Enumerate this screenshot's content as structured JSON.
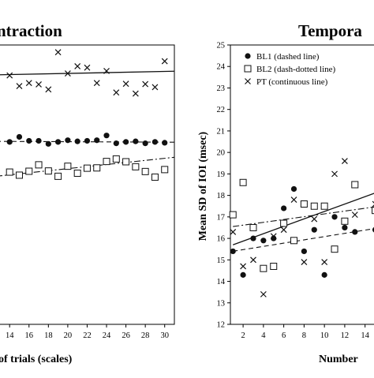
{
  "chart_data": [
    {
      "type": "scatter",
      "title": "ntraction",
      "xlabel": "of trials (scales)",
      "ylabel": "",
      "xlim": [
        12.6,
        31
      ],
      "ylim": [
        0,
        100
      ],
      "x_ticks": [
        "14",
        "16",
        "18",
        "20",
        "22",
        "24",
        "26",
        "28",
        "30"
      ],
      "series": [
        {
          "name": "PT",
          "marker": "x",
          "points": [
            {
              "x": 14,
              "y": 89.1
            },
            {
              "x": 15,
              "y": 85.3
            },
            {
              "x": 16,
              "y": 86.4
            },
            {
              "x": 17,
              "y": 85.9
            },
            {
              "x": 18,
              "y": 84.1
            },
            {
              "x": 19,
              "y": 97.4
            },
            {
              "x": 20,
              "y": 89.8
            },
            {
              "x": 21,
              "y": 92.4
            },
            {
              "x": 22,
              "y": 91.9
            },
            {
              "x": 23,
              "y": 86.4
            },
            {
              "x": 24,
              "y": 90.7
            },
            {
              "x": 25,
              "y": 83.0
            },
            {
              "x": 26,
              "y": 86.1
            },
            {
              "x": 27,
              "y": 82.6
            },
            {
              "x": 28,
              "y": 86.0
            },
            {
              "x": 29,
              "y": 84.9
            },
            {
              "x": 30,
              "y": 94.2
            }
          ],
          "fit": {
            "style": "solid",
            "x": [
              12.6,
              31
            ],
            "y": [
              89.3,
              90.6
            ]
          }
        },
        {
          "name": "BL1",
          "marker": "filled-circle",
          "points": [
            {
              "x": 14,
              "y": 65.3
            },
            {
              "x": 15,
              "y": 67.1
            },
            {
              "x": 16,
              "y": 65.7
            },
            {
              "x": 17,
              "y": 65.7
            },
            {
              "x": 18,
              "y": 64.6
            },
            {
              "x": 19,
              "y": 65.3
            },
            {
              "x": 20,
              "y": 65.9
            },
            {
              "x": 21,
              "y": 65.5
            },
            {
              "x": 22,
              "y": 65.7
            },
            {
              "x": 23,
              "y": 65.9
            },
            {
              "x": 24,
              "y": 67.6
            },
            {
              "x": 25,
              "y": 64.8
            },
            {
              "x": 26,
              "y": 65.3
            },
            {
              "x": 27,
              "y": 65.5
            },
            {
              "x": 28,
              "y": 64.8
            },
            {
              "x": 29,
              "y": 65.3
            },
            {
              "x": 30,
              "y": 65.0
            }
          ],
          "fit": {
            "style": "dashed",
            "x": [
              12.6,
              31
            ],
            "y": [
              65.5,
              65.2
            ]
          }
        },
        {
          "name": "BL2",
          "marker": "open-square",
          "points": [
            {
              "x": 14,
              "y": 54.5
            },
            {
              "x": 15,
              "y": 53.4
            },
            {
              "x": 16,
              "y": 54.8
            },
            {
              "x": 17,
              "y": 57.1
            },
            {
              "x": 18,
              "y": 54.9
            },
            {
              "x": 19,
              "y": 53.0
            },
            {
              "x": 20,
              "y": 56.6
            },
            {
              "x": 21,
              "y": 54.1
            },
            {
              "x": 22,
              "y": 55.9
            },
            {
              "x": 23,
              "y": 56.0
            },
            {
              "x": 24,
              "y": 58.3
            },
            {
              "x": 25,
              "y": 59.2
            },
            {
              "x": 26,
              "y": 58.2
            },
            {
              "x": 27,
              "y": 56.4
            },
            {
              "x": 28,
              "y": 54.7
            },
            {
              "x": 29,
              "y": 52.7
            },
            {
              "x": 30,
              "y": 55.4
            }
          ],
          "fit": {
            "style": "dash-dot",
            "x": [
              12.6,
              31
            ],
            "y": [
              53.0,
              59.8
            ]
          }
        }
      ]
    },
    {
      "type": "scatter",
      "title": "Tempora",
      "xlabel": "Number",
      "ylabel": "Mean SD of IOI (msec)",
      "xlim": [
        0.75,
        15.5
      ],
      "ylim": [
        12,
        25
      ],
      "y_ticks": [
        "12",
        "13",
        "14",
        "15",
        "16",
        "17",
        "18",
        "19",
        "20",
        "21",
        "22",
        "23",
        "24",
        "25"
      ],
      "x_ticks": [
        "2",
        "4",
        "6",
        "8",
        "10",
        "12",
        "14"
      ],
      "legend": {
        "position": "top",
        "entries": [
          {
            "marker": "filled-circle",
            "label": "BL1 (dashed line)"
          },
          {
            "marker": "open-square",
            "label": "BL2 (dash-dotted line)"
          },
          {
            "marker": "x",
            "label": "PT (continuous line)"
          }
        ]
      },
      "series": [
        {
          "name": "BL1",
          "marker": "filled-circle",
          "points": [
            {
              "x": 1,
              "y": 15.4
            },
            {
              "x": 2,
              "y": 14.3
            },
            {
              "x": 3,
              "y": 16.0
            },
            {
              "x": 4,
              "y": 15.9
            },
            {
              "x": 5,
              "y": 16.0
            },
            {
              "x": 6,
              "y": 17.4
            },
            {
              "x": 7,
              "y": 18.3
            },
            {
              "x": 8,
              "y": 15.4
            },
            {
              "x": 9,
              "y": 16.4
            },
            {
              "x": 10,
              "y": 14.3
            },
            {
              "x": 11,
              "y": 17.0
            },
            {
              "x": 12,
              "y": 16.5
            },
            {
              "x": 13,
              "y": 16.3
            },
            {
              "x": 15,
              "y": 16.4
            }
          ],
          "fit": {
            "style": "dashed",
            "x": [
              1,
              15.5
            ],
            "y": [
              15.4,
              16.5
            ]
          }
        },
        {
          "name": "BL2",
          "marker": "open-square",
          "points": [
            {
              "x": 1,
              "y": 17.1
            },
            {
              "x": 2,
              "y": 18.6
            },
            {
              "x": 3,
              "y": 16.5
            },
            {
              "x": 4,
              "y": 14.6
            },
            {
              "x": 5,
              "y": 14.7
            },
            {
              "x": 6,
              "y": 16.7
            },
            {
              "x": 7,
              "y": 15.9
            },
            {
              "x": 8,
              "y": 17.6
            },
            {
              "x": 9,
              "y": 17.5
            },
            {
              "x": 10,
              "y": 17.5
            },
            {
              "x": 11,
              "y": 15.5
            },
            {
              "x": 12,
              "y": 16.8
            },
            {
              "x": 13,
              "y": 18.5
            },
            {
              "x": 15,
              "y": 17.3
            }
          ],
          "fit": {
            "style": "dash-dot",
            "x": [
              1,
              15.5
            ],
            "y": [
              16.55,
              17.5
            ]
          }
        },
        {
          "name": "PT",
          "marker": "x",
          "points": [
            {
              "x": 1,
              "y": 16.3
            },
            {
              "x": 2,
              "y": 14.7
            },
            {
              "x": 3,
              "y": 15.0
            },
            {
              "x": 4,
              "y": 13.4
            },
            {
              "x": 5,
              "y": 16.1
            },
            {
              "x": 6,
              "y": 16.4
            },
            {
              "x": 7,
              "y": 17.8
            },
            {
              "x": 8,
              "y": 14.9
            },
            {
              "x": 9,
              "y": 16.9
            },
            {
              "x": 10,
              "y": 14.9
            },
            {
              "x": 11,
              "y": 19.0
            },
            {
              "x": 12,
              "y": 19.6
            },
            {
              "x": 13,
              "y": 17.1
            },
            {
              "x": 15,
              "y": 17.6
            }
          ],
          "fit": {
            "style": "solid",
            "x": [
              1,
              15.5
            ],
            "y": [
              15.7,
              18.2
            ]
          }
        }
      ]
    }
  ]
}
